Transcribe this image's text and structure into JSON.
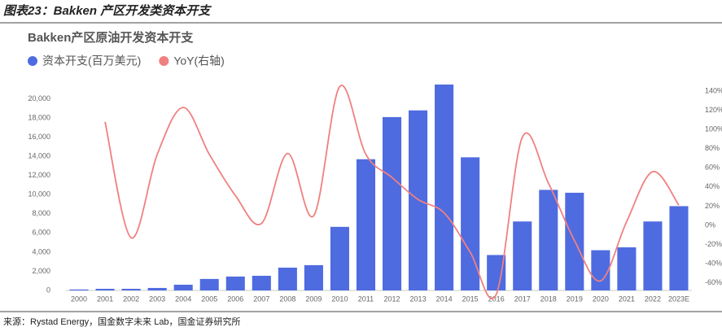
{
  "header": "图表23：Bakken 产区开发类资本开支",
  "source": "来源：Rystad Energy，国金数字未来 Lab，国金证券研究所",
  "chart_data": {
    "type": "bar",
    "title": "Bakken产区原油开发资本开支",
    "categories": [
      "2000",
      "2001",
      "2002",
      "2003",
      "2004",
      "2005",
      "2006",
      "2007",
      "2008",
      "2009",
      "2010",
      "2011",
      "2012",
      "2013",
      "2014",
      "2015",
      "2016",
      "2017",
      "2018",
      "2019",
      "2020",
      "2021",
      "2022",
      "2023E"
    ],
    "series": [
      {
        "name": "资本开支(百万美元)",
        "color": "#4f6be0",
        "type": "bar",
        "values": [
          100,
          170,
          170,
          260,
          600,
          1200,
          1450,
          1530,
          2380,
          2640,
          6640,
          13700,
          18100,
          18800,
          21500,
          13900,
          3700,
          7200,
          10500,
          10200,
          4200,
          4500,
          7200,
          8800
        ]
      },
      {
        "name": "YoY(右轴)",
        "color": "#f08080",
        "type": "line",
        "axis": "y2",
        "values": [
          null,
          108,
          -13,
          74,
          123,
          74,
          31,
          2,
          75,
          10,
          145,
          74,
          50,
          27,
          13,
          -28,
          -72,
          92,
          44,
          -16,
          -58,
          4,
          56,
          21
        ]
      }
    ],
    "ylim": [
      0,
      22000
    ],
    "yticks": [
      0,
      {
        "value": 2000,
        "label": "2,000"
      },
      {
        "value": 4000,
        "label": "4,000"
      },
      {
        "value": 6000,
        "label": "6,000"
      },
      {
        "value": 8000,
        "label": "8,000"
      },
      {
        "value": 10000,
        "label": "10,000"
      },
      {
        "value": 12000,
        "label": "12,000"
      },
      {
        "value": 14000,
        "label": "14,000"
      },
      {
        "value": 16000,
        "label": "16,000"
      },
      {
        "value": 18000,
        "label": "18,000"
      },
      {
        "value": 20000,
        "label": "20,000"
      }
    ],
    "y2lim": [
      -68,
      152
    ],
    "y2ticks": [
      {
        "value": -60,
        "label": "-60%"
      },
      {
        "value": -40,
        "label": "-40%"
      },
      {
        "value": -20,
        "label": "-20%"
      },
      {
        "value": 0,
        "label": "0%"
      },
      {
        "value": 20,
        "label": "20%"
      },
      {
        "value": 40,
        "label": "40%"
      },
      {
        "value": 60,
        "label": "60%"
      },
      {
        "value": 80,
        "label": "80%"
      },
      {
        "value": 100,
        "label": "100%"
      },
      {
        "value": 120,
        "label": "120%"
      },
      {
        "value": 140,
        "label": "140%"
      }
    ]
  }
}
